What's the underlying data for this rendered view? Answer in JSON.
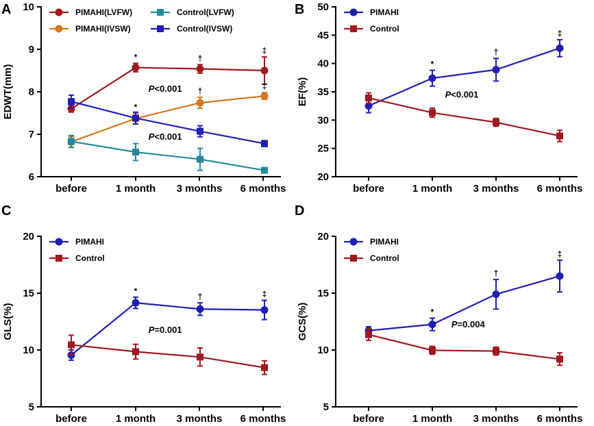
{
  "chart_data": [
    {
      "panel": "A",
      "type": "line",
      "categories": [
        "before",
        "1 month",
        "3 months",
        "6 months"
      ],
      "ylabel": "EDWT(mm)",
      "ylim": [
        6,
        10
      ],
      "yticks": [
        6,
        7,
        8,
        9,
        10
      ],
      "grid": false,
      "legend_placement": "top",
      "series": [
        {
          "name": "PIMAHI(LVFW)",
          "color": "#A01820",
          "marker": "circle",
          "values": [
            7.6,
            8.57,
            8.54,
            8.5
          ],
          "errors": [
            0.08,
            0.1,
            0.1,
            0.32
          ],
          "marks": [
            "",
            "*",
            "†",
            "‡"
          ]
        },
        {
          "name": "PIMAHI(IVSW)",
          "color": "#D2781E",
          "marker": "circle",
          "values": [
            6.82,
            7.37,
            7.74,
            7.9
          ],
          "errors": [
            0.12,
            0.12,
            0.13,
            0.08
          ],
          "marks": [
            "",
            "*",
            "†",
            "‡"
          ]
        },
        {
          "name": "Control(LVFW)",
          "color": "#238A9B",
          "marker": "square",
          "values": [
            6.83,
            6.58,
            6.41,
            6.15
          ],
          "errors": [
            0.14,
            0.2,
            0.26,
            0.03
          ],
          "marks": [
            "",
            "",
            "",
            ""
          ]
        },
        {
          "name": "Control(IVSW)",
          "color": "#1F1FB4",
          "marker": "square",
          "values": [
            7.77,
            7.38,
            7.07,
            6.78
          ],
          "errors": [
            0.15,
            0.14,
            0.13,
            0.07
          ],
          "marks": [
            "",
            "",
            "",
            ""
          ]
        }
      ],
      "annotations": [
        {
          "label": "P",
          "text": "<0.001",
          "at_category": 1.2,
          "at_value": 8.0
        },
        {
          "label": "P",
          "text": "<0.001",
          "at_category": 1.2,
          "at_value": 6.87
        }
      ]
    },
    {
      "panel": "B",
      "type": "line",
      "categories": [
        "before",
        "1 month",
        "3 months",
        "6 months"
      ],
      "ylabel": "EF(%)",
      "ylim": [
        20,
        50
      ],
      "yticks": [
        20,
        25,
        30,
        35,
        40,
        45,
        50
      ],
      "grid": false,
      "legend_placement": "top-left",
      "series": [
        {
          "name": "PIMAHI",
          "color": "#1F1FB4",
          "marker": "circle",
          "values": [
            32.5,
            37.4,
            38.9,
            42.7
          ],
          "errors": [
            1.2,
            1.4,
            2.0,
            1.5
          ],
          "marks": [
            "",
            "*",
            "†",
            "‡"
          ]
        },
        {
          "name": "Control",
          "color": "#A01820",
          "marker": "square",
          "values": [
            33.9,
            31.3,
            29.6,
            27.2
          ],
          "errors": [
            0.9,
            0.8,
            0.7,
            1.0
          ],
          "marks": [
            "",
            "",
            "",
            ""
          ]
        }
      ],
      "annotations": [
        {
          "label": "P",
          "text": "<0.001",
          "at_category": 1.2,
          "at_value": 34.0
        }
      ]
    },
    {
      "panel": "C",
      "type": "line",
      "categories": [
        "before",
        "1 month",
        "3 months",
        "6 months"
      ],
      "ylabel": "GLS(%)",
      "ylim": [
        5,
        20
      ],
      "yticks": [
        5,
        10,
        15,
        20
      ],
      "grid": false,
      "legend_placement": "top-left",
      "series": [
        {
          "name": "PIMAHI",
          "color": "#1F1FB4",
          "marker": "circle",
          "values": [
            9.55,
            14.15,
            13.6,
            13.52
          ],
          "errors": [
            0.45,
            0.5,
            0.55,
            0.85
          ],
          "marks": [
            "",
            "*",
            "†",
            "‡"
          ]
        },
        {
          "name": "Control",
          "color": "#A01820",
          "marker": "square",
          "values": [
            10.45,
            9.85,
            9.38,
            8.45
          ],
          "errors": [
            0.85,
            0.65,
            0.8,
            0.6
          ],
          "marks": [
            "",
            "",
            "",
            ""
          ]
        }
      ],
      "annotations": [
        {
          "label": "P",
          "text": "=0.001",
          "at_category": 1.2,
          "at_value": 11.5
        }
      ]
    },
    {
      "panel": "D",
      "type": "line",
      "categories": [
        "before",
        "1 month",
        "3 months",
        "6 months"
      ],
      "ylabel": "GCS(%)",
      "ylim": [
        5,
        20
      ],
      "yticks": [
        5,
        10,
        15,
        20
      ],
      "grid": false,
      "legend_placement": "top-left",
      "series": [
        {
          "name": "PIMAHI",
          "color": "#1F1FB4",
          "marker": "circle",
          "values": [
            11.7,
            12.25,
            14.9,
            16.5
          ],
          "errors": [
            0.35,
            0.55,
            1.3,
            1.4
          ],
          "marks": [
            "",
            "*",
            "†",
            "‡"
          ]
        },
        {
          "name": "Control",
          "color": "#A01820",
          "marker": "square",
          "values": [
            11.35,
            9.97,
            9.9,
            9.2
          ],
          "errors": [
            0.5,
            0.35,
            0.35,
            0.55
          ],
          "marks": [
            "",
            "",
            "",
            ""
          ]
        }
      ],
      "annotations": [
        {
          "label": "P",
          "text": "=0.004",
          "at_category": 1.3,
          "at_value": 12.0
        }
      ]
    }
  ]
}
